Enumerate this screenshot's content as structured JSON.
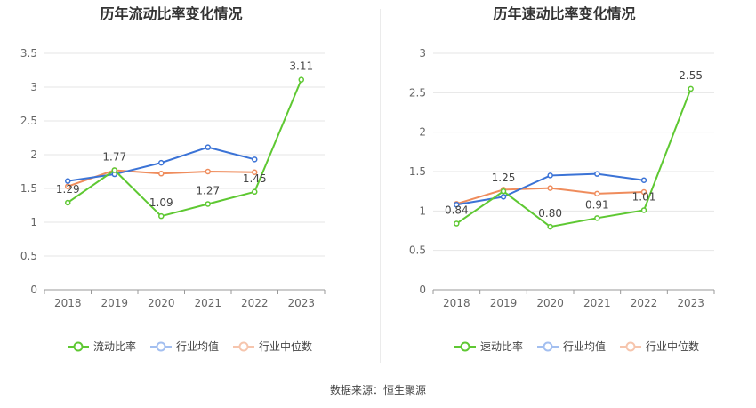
{
  "colors": {
    "main": "#5ec832",
    "avg": "#3b73d6",
    "median": "#ef8c5c",
    "grid": "#e6e6e6",
    "axis": "#999999",
    "text": "#666666"
  },
  "legend": {
    "industry_avg": "行业均值",
    "industry_median": "行业中位数"
  },
  "source_text": "数据来源：恒生聚源",
  "chart_data": [
    {
      "type": "line",
      "title": "历年流动比率变化情况",
      "categories": [
        "2018",
        "2019",
        "2020",
        "2021",
        "2022",
        "2023"
      ],
      "ylim": [
        0,
        3.5
      ],
      "yticks": [
        "0",
        "0.5",
        "1",
        "1.5",
        "2",
        "2.5",
        "3",
        "3.5"
      ],
      "series": [
        {
          "name": "流动比率",
          "values": [
            1.29,
            1.77,
            1.09,
            1.27,
            1.45,
            3.11
          ],
          "labels": [
            "1.29",
            "1.77",
            "1.09",
            "1.27",
            "1.45",
            "3.11"
          ]
        },
        {
          "name": "行业均值",
          "values": [
            1.61,
            1.71,
            1.88,
            2.11,
            1.93,
            null
          ]
        },
        {
          "name": "行业中位数",
          "values": [
            1.53,
            1.77,
            1.72,
            1.75,
            1.74,
            null
          ]
        }
      ]
    },
    {
      "type": "line",
      "title": "历年速动比率变化情况",
      "categories": [
        "2018",
        "2019",
        "2020",
        "2021",
        "2022",
        "2023"
      ],
      "ylim": [
        0,
        3
      ],
      "yticks": [
        "0",
        "0.5",
        "1",
        "1.5",
        "2",
        "2.5",
        "3"
      ],
      "series": [
        {
          "name": "速动比率",
          "values": [
            0.84,
            1.25,
            0.8,
            0.91,
            1.01,
            2.55
          ],
          "labels": [
            "0.84",
            "1.25",
            "0.80",
            "0.91",
            "1.01",
            "2.55"
          ]
        },
        {
          "name": "行业均值",
          "values": [
            1.08,
            1.18,
            1.45,
            1.47,
            1.39,
            null
          ]
        },
        {
          "name": "行业中位数",
          "values": [
            1.09,
            1.27,
            1.29,
            1.22,
            1.24,
            null
          ]
        }
      ]
    }
  ]
}
